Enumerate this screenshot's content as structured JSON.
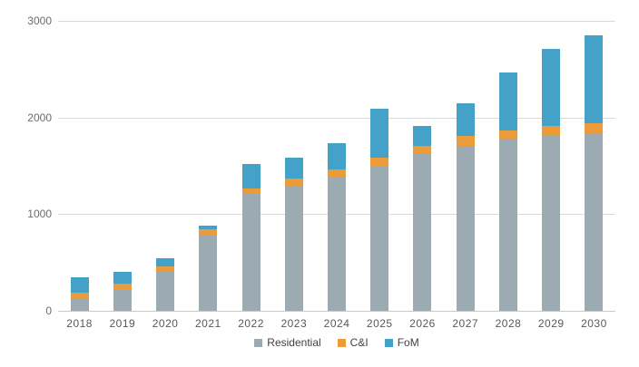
{
  "chart_data": {
    "type": "bar",
    "stacked": true,
    "title": "",
    "xlabel": "",
    "ylabel": "",
    "ylim": [
      0,
      3000
    ],
    "yticks": [
      0,
      1000,
      2000,
      3000
    ],
    "grid": true,
    "legend_position": "bottom",
    "categories": [
      "2018",
      "2019",
      "2020",
      "2021",
      "2022",
      "2023",
      "2024",
      "2025",
      "2026",
      "2027",
      "2028",
      "2029",
      "2030"
    ],
    "series": [
      {
        "name": "Residential",
        "color": "#9CABB1",
        "values": [
          130,
          220,
          410,
          790,
          1210,
          1290,
          1380,
          1500,
          1625,
          1710,
          1770,
          1810,
          1840
        ]
      },
      {
        "name": "C&I",
        "color": "#EC9B3B",
        "values": [
          60,
          60,
          45,
          55,
          60,
          75,
          80,
          85,
          85,
          95,
          95,
          100,
          100
        ]
      },
      {
        "name": "FoM",
        "color": "#44A1C8",
        "values": [
          160,
          120,
          90,
          40,
          245,
          220,
          270,
          505,
          200,
          345,
          600,
          800,
          910
        ]
      }
    ]
  },
  "colors": {
    "gridline": "#d9d9d9",
    "axis_line": "#c9c9c9",
    "tick_text": "#595959",
    "legend_text": "#424242"
  }
}
